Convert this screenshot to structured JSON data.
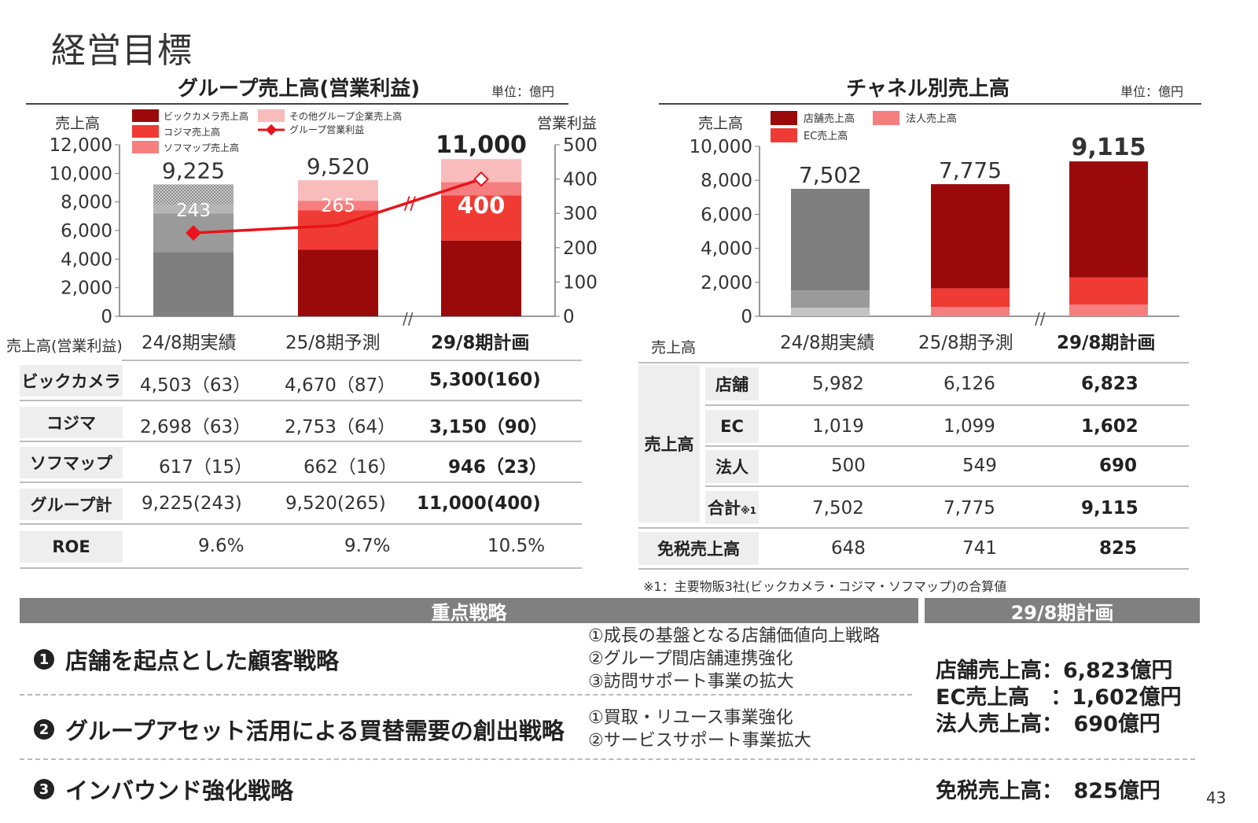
{
  "page_title": "経営目標",
  "page_number": "43",
  "left_chart": {
    "title": "グループ売上高(営業利益)",
    "unit": "単位：億円",
    "y_label_left": "売上高",
    "y_label_right": "営業利益",
    "legend": [
      "ビックカメラ売上高",
      "その他グループ企業売上高",
      "コジマ売上高",
      "グループ営業利益",
      "ソフマップ売上高"
    ],
    "bar_totals": [
      "9,225",
      "9,520",
      "11,000"
    ],
    "profit_labels": [
      "243",
      "265",
      "400"
    ]
  },
  "right_chart": {
    "title": "チャネル別売上高",
    "unit": "単位：億円",
    "y_label": "売上高",
    "legend": [
      "店舗売上高",
      "法人売上高",
      "EC売上高"
    ],
    "bar_totals": [
      "7,502",
      "7,775",
      "9,115"
    ]
  },
  "chart_data": [
    {
      "type": "bar",
      "title": "グループ売上高(営業利益)",
      "categories": [
        "24/8期実績",
        "25/8期予測",
        "29/8期計画"
      ],
      "ylim": [
        0,
        12000
      ],
      "y2lim": [
        0,
        500
      ],
      "y_ticks": [
        "0",
        "2,000",
        "4,000",
        "6,000",
        "8,000",
        "10,000",
        "12,000"
      ],
      "y2_ticks": [
        "0",
        "100",
        "200",
        "300",
        "400",
        "500"
      ],
      "series": [
        {
          "name": "ビックカメラ売上高",
          "values": [
            4503,
            4670,
            5300
          ],
          "colors": [
            "#7f7f7f",
            "#9b0a0a",
            "#9b0a0a"
          ]
        },
        {
          "name": "コジマ売上高",
          "values": [
            2698,
            2753,
            3150
          ],
          "colors": [
            "#9a9a9a",
            "#f03b35",
            "#f03b35"
          ]
        },
        {
          "name": "ソフマップ売上高",
          "values": [
            617,
            662,
            946
          ],
          "colors": [
            "#b5b5b5",
            "#f57f7f",
            "#f57f7f"
          ]
        },
        {
          "name": "その他グループ企業売上高",
          "values": [
            1407,
            1435,
            1604
          ],
          "colors": [
            "#c8c8c8",
            "#f9bcbc",
            "#f9bcbc"
          ]
        }
      ],
      "line": {
        "name": "グループ営業利益",
        "values": [
          243,
          265,
          400
        ],
        "color": "#e8141a"
      },
      "totals": [
        9225,
        9520,
        11000
      ]
    },
    {
      "type": "bar",
      "title": "チャネル別売上高",
      "categories": [
        "24/8期実績",
        "25/8期予測",
        "29/8期計画"
      ],
      "ylim": [
        0,
        10000
      ],
      "y_ticks": [
        "0",
        "2,000",
        "4,000",
        "6,000",
        "8,000",
        "10,000"
      ],
      "series": [
        {
          "name": "店舗売上高",
          "values": [
            5982,
            6126,
            6823
          ],
          "colors": [
            "#7f7f7f",
            "#9b0a0a",
            "#9b0a0a"
          ]
        },
        {
          "name": "EC売上高",
          "values": [
            1019,
            1099,
            1602
          ],
          "colors": [
            "#9a9a9a",
            "#f03b35",
            "#f03b35"
          ]
        },
        {
          "name": "法人売上高",
          "values": [
            500,
            549,
            690
          ],
          "colors": [
            "#c4c4c4",
            "#f57f7f",
            "#f57f7f"
          ]
        }
      ],
      "totals": [
        7502,
        7775,
        9115
      ]
    }
  ],
  "left_table": {
    "header_label": "売上高(営業利益)",
    "columns": [
      "24/8期実績",
      "25/8期予測",
      "29/8期計画"
    ],
    "rows": [
      {
        "label": "ビックカメラ",
        "values": [
          "4,503（63）",
          "4,670（87）",
          "5,300(160)"
        ]
      },
      {
        "label": "コジマ",
        "values": [
          "2,698（63）",
          "2,753（64）",
          "3,150（90）"
        ]
      },
      {
        "label": "ソフマップ",
        "values": [
          "617（15）",
          "662（16）",
          "946（23）"
        ]
      },
      {
        "label": "グループ計",
        "values": [
          "9,225(243)",
          "9,520(265)",
          "11,000(400)"
        ]
      },
      {
        "label": "ROE",
        "values": [
          "9.6%",
          "9.7%",
          "10.5%"
        ]
      }
    ]
  },
  "right_table": {
    "header_label": "売上高",
    "group_label": "売上高",
    "columns": [
      "24/8期実績",
      "25/8期予測",
      "29/8期計画"
    ],
    "rows": [
      {
        "label": "店舗",
        "values": [
          "5,982",
          "6,126",
          "6,823"
        ]
      },
      {
        "label": "EC",
        "values": [
          "1,019",
          "1,099",
          "1,602"
        ]
      },
      {
        "label": "法人",
        "values": [
          "500",
          "549",
          "690"
        ]
      },
      {
        "label": "合計",
        "note_mark": "※1",
        "values": [
          "7,502",
          "7,775",
          "9,115"
        ]
      },
      {
        "label": "免税売上高",
        "values": [
          "648",
          "741",
          "825"
        ]
      }
    ],
    "footnote": "※1：主要物販3社(ビックカメラ・コジマ・ソフマップ)の合算値"
  },
  "strategy": {
    "header": "重点戦略",
    "plan_header": "29/8期計画",
    "items": [
      {
        "num": "1",
        "title": "店舗を起点とした顧客戦略",
        "subs": [
          "①成長の基盤となる店舗価値向上戦略",
          "②グループ間店舗連携強化",
          "③訪問サポート事業の拡大"
        ]
      },
      {
        "num": "2",
        "title": "グループアセット活用による買替需要の創出戦略",
        "subs": [
          "①買取・リユース事業強化",
          "②サービスサポート事業拡大"
        ]
      },
      {
        "num": "3",
        "title": "インバウンド強化戦略",
        "subs": []
      }
    ],
    "plan_lines": [
      "店舗売上高：6,823億円",
      "EC売上高　：1,602億円",
      "法人売上高：　690億円"
    ],
    "plan_tax_free": "免税売上高：　825億円"
  }
}
